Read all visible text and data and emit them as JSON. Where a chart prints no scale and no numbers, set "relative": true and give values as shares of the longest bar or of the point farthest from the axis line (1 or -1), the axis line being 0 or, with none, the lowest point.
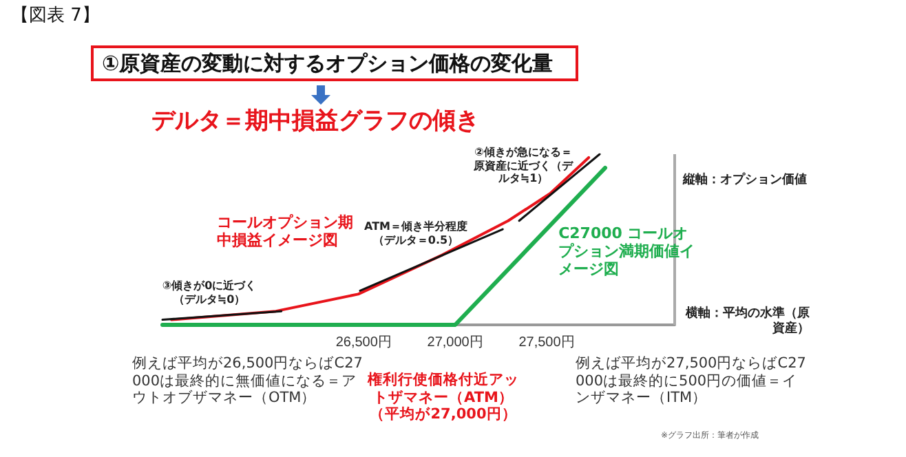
{
  "chart_data": {
    "type": "line",
    "title": "①原資産の変動に対するオプション価格の変化量",
    "subtitle": "デルタ＝期中損益グラフの傾き",
    "xlabel": "横軸：平均の水準（原資産）",
    "ylabel": "縦軸：オプション価値",
    "relative": true,
    "marker": "none",
    "xlim": [
      25400,
      28200
    ],
    "xticks": [
      {
        "value": 26500,
        "label": "26,500円"
      },
      {
        "value": 27000,
        "label": "27,000円"
      },
      {
        "value": 27500,
        "label": "27,500円"
      }
    ],
    "series": [
      {
        "name": "コールオプション期中損益イメージ図",
        "color": "#e8141b",
        "x": [
          25450,
          26020,
          26470,
          26930,
          27290,
          27520,
          27730
        ],
        "values": [
          0.03,
          0.08,
          0.18,
          0.41,
          0.61,
          0.77,
          0.98
        ]
      },
      {
        "name": "C27000 コールオプション満期価値イメージ図",
        "color": "#1fae4f",
        "x": [
          25400,
          27000,
          27820
        ],
        "values": [
          0,
          0,
          0.92
        ]
      },
      {
        "color": "#111111",
        "x": [
          25400,
          26050
        ],
        "values": [
          0.03,
          0.08
        ]
      },
      {
        "color": "#111111",
        "x": [
          26480,
          27260
        ],
        "values": [
          0.2,
          0.56
        ]
      },
      {
        "color": "#111111",
        "x": [
          27350,
          27790
        ],
        "values": [
          0.61,
          1.0
        ]
      }
    ],
    "annotations": [
      "【図表 7】",
      "③傾きが0に近づく（デルタ≒0）",
      "ATM＝傾き半分程度（デルタ＝0.5）",
      "②傾きが急になる＝原資産に近づく（デルタ≒1）",
      "例えば平均が26,500円ならばC27000は最終的に無価値になる＝アウトオブザマネー（OTM）",
      "権利行使価格付近アットザマネー（ATM）（平均が27,000円）",
      "例えば平均が27,500円ならばC27000は最終的に500円の価値＝インザマネー（ITM）",
      "※グラフ出所：筆者が作成"
    ]
  }
}
